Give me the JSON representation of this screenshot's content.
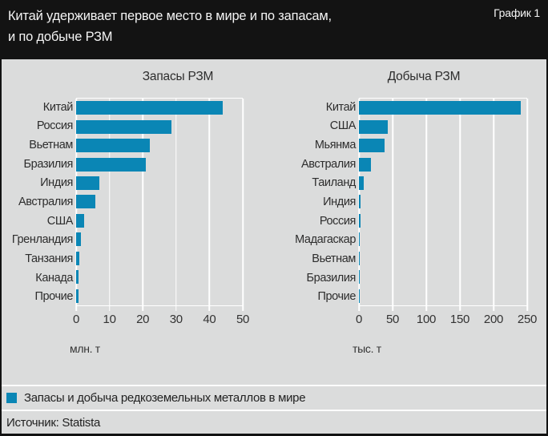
{
  "header": {
    "title_line1": "Китай удерживает первое место в мире и по запасам,",
    "title_line2": "и по добыче РЗМ",
    "corner_label": "График 1"
  },
  "chart_data": [
    {
      "type": "bar",
      "orientation": "horizontal",
      "title": "Запасы РЗМ",
      "unit_label": "млн. т",
      "categories": [
        "Китай",
        "Россия",
        "Вьетнам",
        "Бразилия",
        "Индия",
        "Австралия",
        "США",
        "Гренландия",
        "Танзания",
        "Канада",
        "Прочие"
      ],
      "values": [
        44,
        28.7,
        22,
        21,
        6.9,
        5.7,
        2.3,
        1.5,
        0.89,
        0.83,
        0.82
      ],
      "axis": {
        "min": 0,
        "max": 50,
        "ticks": [
          0,
          10,
          20,
          30,
          40,
          50
        ]
      },
      "grid": true,
      "bar_color": "#0a86b5"
    },
    {
      "type": "bar",
      "orientation": "horizontal",
      "title": "Добыча РЗМ",
      "unit_label": "тыс. т",
      "categories": [
        "Китай",
        "США",
        "Мьянма",
        "Австралия",
        "Таиланд",
        "Индия",
        "Россия",
        "Мадагаскар",
        "Вьетнам",
        "Бразилия",
        "Прочие"
      ],
      "values": [
        240,
        43,
        38,
        18,
        7.1,
        2.9,
        2.6,
        1.0,
        0.6,
        0.1,
        0.1
      ],
      "axis": {
        "min": 0,
        "max": 250,
        "ticks": [
          0,
          50,
          100,
          150,
          200,
          250
        ]
      },
      "grid": true,
      "bar_color": "#0a86b5"
    }
  ],
  "legend": {
    "label": "Запасы и добыча редкоземельных металлов в мире",
    "swatch_color": "#0a86b5"
  },
  "source": {
    "text": "Источник: Statista"
  },
  "colors": {
    "background": "#dbdcdc",
    "header_background": "#131313",
    "header_text": "#f4f4f4",
    "bar": "#0a86b5",
    "gridline": "#ffffff",
    "text": "#2d2d2d"
  }
}
